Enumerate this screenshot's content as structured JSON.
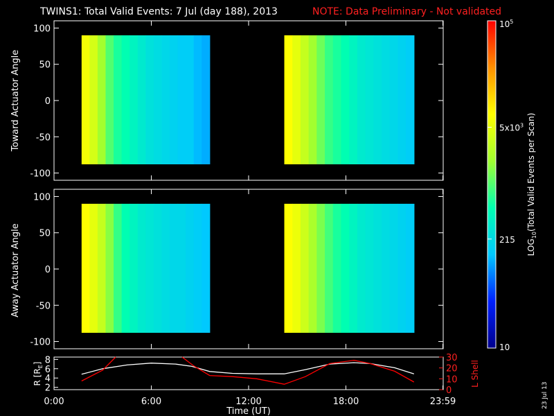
{
  "header": {
    "title": "TWINS1: Total Valid Events:  7 Jul (day 188), 2013",
    "note": "NOTE: Data Preliminary - Not validated"
  },
  "colorbar": {
    "label_pre": "LOG",
    "label_sub": "10",
    "label_post": "(Total Valid Events per Scan)",
    "ticks": [
      {
        "text": "10",
        "value": 10
      },
      {
        "text": "215",
        "value": 215
      },
      {
        "text": "5x10",
        "sup": "3",
        "value": 5000
      },
      {
        "text": "10",
        "sup": "5",
        "value": 100000
      }
    ],
    "min": 10,
    "max": 100000,
    "colors": [
      "#00008c",
      "#0020ff",
      "#00c8ff",
      "#00ffb0",
      "#a0ff30",
      "#ffff00",
      "#ff9000",
      "#ff0000"
    ]
  },
  "footer": {
    "date": "23 Jul 13"
  },
  "chart_data": [
    {
      "type": "heatmap",
      "name": "toward",
      "ylabel": "Toward Actuator Angle",
      "ylim": [
        -110,
        110
      ],
      "yticks": [
        100,
        50,
        0,
        -50,
        -100
      ],
      "xlim": [
        0,
        24
      ],
      "y_range": [
        -88,
        90
      ],
      "blocks": [
        {
          "x_start": 1.7,
          "x_end": 9.6,
          "log_values": [
            3.8,
            3.6,
            3.3,
            3.0,
            2.8,
            2.7,
            2.6,
            2.5,
            2.4,
            2.35,
            2.3,
            2.25,
            2.2,
            2.2,
            2.1,
            2.05
          ]
        },
        {
          "x_start": 14.2,
          "x_end": 22.2,
          "log_values": [
            3.85,
            3.7,
            3.5,
            3.3,
            3.1,
            2.9,
            2.8,
            2.7,
            2.6,
            2.5,
            2.45,
            2.4,
            2.35,
            2.3,
            2.25,
            2.2
          ]
        }
      ]
    },
    {
      "type": "heatmap",
      "name": "away",
      "ylabel": "Away Actuator Angle",
      "ylim": [
        -110,
        110
      ],
      "yticks": [
        100,
        50,
        0,
        -50,
        -100
      ],
      "xlim": [
        0,
        24
      ],
      "y_range": [
        -88,
        90
      ],
      "blocks": [
        {
          "x_start": 1.7,
          "x_end": 9.6,
          "log_values": [
            3.85,
            3.7,
            3.5,
            3.2,
            2.9,
            2.7,
            2.6,
            2.5,
            2.45,
            2.4,
            2.35,
            2.3,
            2.3,
            2.25,
            2.2,
            2.15
          ]
        },
        {
          "x_start": 14.2,
          "x_end": 22.2,
          "log_values": [
            3.85,
            3.75,
            3.55,
            3.35,
            3.15,
            2.95,
            2.8,
            2.7,
            2.6,
            2.5,
            2.45,
            2.4,
            2.35,
            2.3,
            2.25,
            2.2
          ]
        }
      ]
    },
    {
      "type": "line",
      "name": "orbit",
      "xlabel": "Time (UT)",
      "xticks": [
        "0:00",
        "6:00",
        "12:00",
        "18:00",
        "23:59"
      ],
      "xtick_values": [
        0,
        6,
        12,
        18,
        23.98
      ],
      "xlim": [
        0,
        24
      ],
      "ylabel_left_pre": "R [R",
      "ylabel_left_sub": "E",
      "ylabel_left_post": "]",
      "ylim_left": [
        1.5,
        8.5
      ],
      "yticks_left": [
        2,
        4,
        6,
        8
      ],
      "ylabel_right": "L Shell",
      "ylim_right": [
        0,
        30
      ],
      "yticks_right": [
        0,
        10,
        20,
        30
      ],
      "series": [
        {
          "axis": "left",
          "color": "#ffffff",
          "x": [
            1.7,
            3.0,
            4.5,
            6.0,
            7.5,
            8.5,
            9.6,
            11.0,
            12.5,
            14.2,
            15.5,
            17.0,
            18.5,
            19.5,
            21.0,
            22.2
          ],
          "y": [
            4.8,
            6.0,
            6.8,
            7.2,
            7.0,
            6.5,
            5.4,
            5.0,
            4.9,
            4.9,
            5.8,
            7.0,
            7.3,
            7.1,
            6.2,
            4.9
          ]
        },
        {
          "axis": "right",
          "color": "#ff0000",
          "x": [
            1.7,
            3.0,
            3.8
          ],
          "y": [
            8,
            18,
            30
          ]
        },
        {
          "axis": "right",
          "color": "#ff0000",
          "x": [
            7.9,
            8.6,
            9.6,
            11.0,
            12.5,
            14.2,
            15.5,
            17.0,
            18.5,
            19.5,
            21.0,
            22.2
          ],
          "y": [
            30,
            22,
            13,
            12,
            10,
            5,
            12,
            24,
            27,
            24,
            17,
            7
          ]
        }
      ]
    }
  ]
}
